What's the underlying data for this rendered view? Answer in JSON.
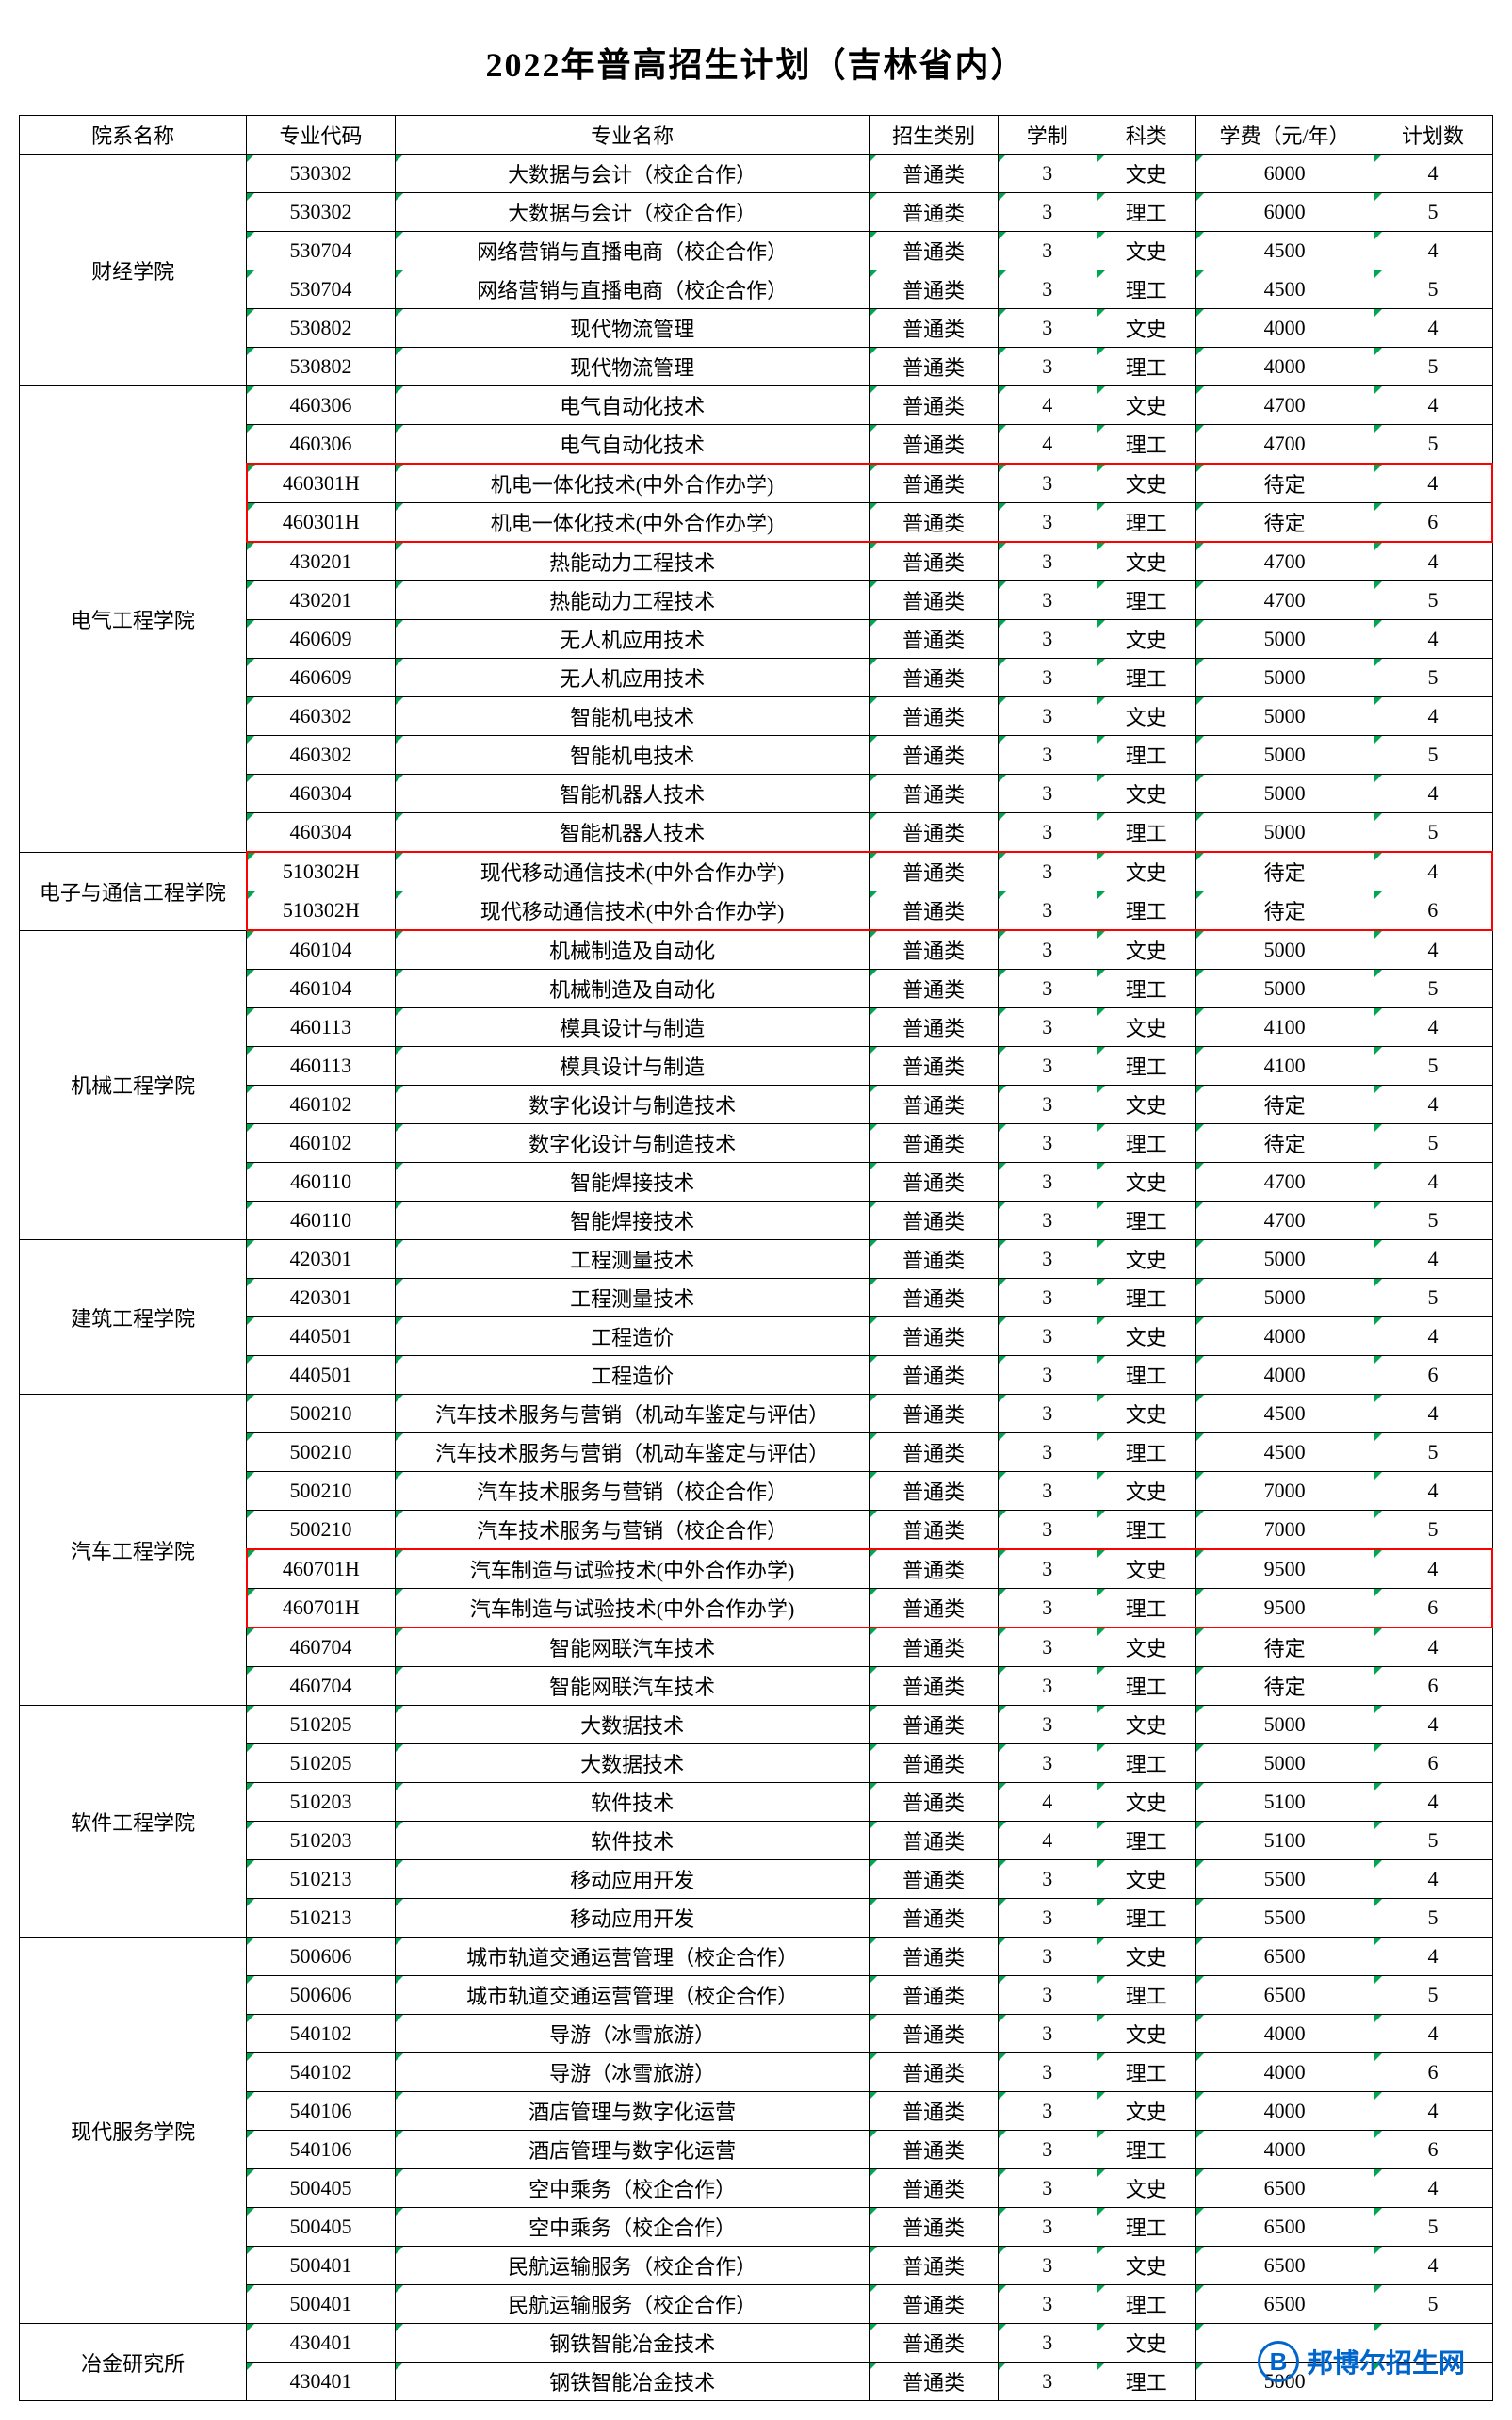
{
  "title": "2022年普高招生计划（吉林省内）",
  "headers": {
    "dept": "院系名称",
    "code": "专业代码",
    "major": "专业名称",
    "category": "招生类别",
    "duration": "学制",
    "subject": "科类",
    "fee": "学费（元/年）",
    "plan": "计划数"
  },
  "watermark": {
    "logo_letter": "B",
    "text": "邦博尔招生网"
  },
  "departments": [
    {
      "name": "财经学院",
      "rows": [
        {
          "code": "530302",
          "major": "大数据与会计（校企合作）",
          "cat": "普通类",
          "dur": "3",
          "sub": "文史",
          "fee": "6000",
          "plan": "4"
        },
        {
          "code": "530302",
          "major": "大数据与会计（校企合作）",
          "cat": "普通类",
          "dur": "3",
          "sub": "理工",
          "fee": "6000",
          "plan": "5"
        },
        {
          "code": "530704",
          "major": "网络营销与直播电商（校企合作）",
          "cat": "普通类",
          "dur": "3",
          "sub": "文史",
          "fee": "4500",
          "plan": "4"
        },
        {
          "code": "530704",
          "major": "网络营销与直播电商（校企合作）",
          "cat": "普通类",
          "dur": "3",
          "sub": "理工",
          "fee": "4500",
          "plan": "5"
        },
        {
          "code": "530802",
          "major": "现代物流管理",
          "cat": "普通类",
          "dur": "3",
          "sub": "文史",
          "fee": "4000",
          "plan": "4"
        },
        {
          "code": "530802",
          "major": "现代物流管理",
          "cat": "普通类",
          "dur": "3",
          "sub": "理工",
          "fee": "4000",
          "plan": "5"
        }
      ]
    },
    {
      "name": "电气工程学院",
      "rows": [
        {
          "code": "460306",
          "major": "电气自动化技术",
          "cat": "普通类",
          "dur": "4",
          "sub": "文史",
          "fee": "4700",
          "plan": "4"
        },
        {
          "code": "460306",
          "major": "电气自动化技术",
          "cat": "普通类",
          "dur": "4",
          "sub": "理工",
          "fee": "4700",
          "plan": "5"
        },
        {
          "code": "460301H",
          "major": "机电一体化技术(中外合作办学)",
          "cat": "普通类",
          "dur": "3",
          "sub": "文史",
          "fee": "待定",
          "plan": "4",
          "hl": "top"
        },
        {
          "code": "460301H",
          "major": "机电一体化技术(中外合作办学)",
          "cat": "普通类",
          "dur": "3",
          "sub": "理工",
          "fee": "待定",
          "plan": "6",
          "hl": "bot"
        },
        {
          "code": "430201",
          "major": "热能动力工程技术",
          "cat": "普通类",
          "dur": "3",
          "sub": "文史",
          "fee": "4700",
          "plan": "4"
        },
        {
          "code": "430201",
          "major": "热能动力工程技术",
          "cat": "普通类",
          "dur": "3",
          "sub": "理工",
          "fee": "4700",
          "plan": "5"
        },
        {
          "code": "460609",
          "major": "无人机应用技术",
          "cat": "普通类",
          "dur": "3",
          "sub": "文史",
          "fee": "5000",
          "plan": "4"
        },
        {
          "code": "460609",
          "major": "无人机应用技术",
          "cat": "普通类",
          "dur": "3",
          "sub": "理工",
          "fee": "5000",
          "plan": "5"
        },
        {
          "code": "460302",
          "major": "智能机电技术",
          "cat": "普通类",
          "dur": "3",
          "sub": "文史",
          "fee": "5000",
          "plan": "4"
        },
        {
          "code": "460302",
          "major": "智能机电技术",
          "cat": "普通类",
          "dur": "3",
          "sub": "理工",
          "fee": "5000",
          "plan": "5"
        },
        {
          "code": "460304",
          "major": "智能机器人技术",
          "cat": "普通类",
          "dur": "3",
          "sub": "文史",
          "fee": "5000",
          "plan": "4"
        },
        {
          "code": "460304",
          "major": "智能机器人技术",
          "cat": "普通类",
          "dur": "3",
          "sub": "理工",
          "fee": "5000",
          "plan": "5"
        }
      ]
    },
    {
      "name": "电子与通信工程学院",
      "rows": [
        {
          "code": "510302H",
          "major": "现代移动通信技术(中外合作办学)",
          "cat": "普通类",
          "dur": "3",
          "sub": "文史",
          "fee": "待定",
          "plan": "4",
          "hl": "top"
        },
        {
          "code": "510302H",
          "major": "现代移动通信技术(中外合作办学)",
          "cat": "普通类",
          "dur": "3",
          "sub": "理工",
          "fee": "待定",
          "plan": "6",
          "hl": "bot"
        }
      ]
    },
    {
      "name": "机械工程学院",
      "rows": [
        {
          "code": "460104",
          "major": "机械制造及自动化",
          "cat": "普通类",
          "dur": "3",
          "sub": "文史",
          "fee": "5000",
          "plan": "4"
        },
        {
          "code": "460104",
          "major": "机械制造及自动化",
          "cat": "普通类",
          "dur": "3",
          "sub": "理工",
          "fee": "5000",
          "plan": "5"
        },
        {
          "code": "460113",
          "major": "模具设计与制造",
          "cat": "普通类",
          "dur": "3",
          "sub": "文史",
          "fee": "4100",
          "plan": "4"
        },
        {
          "code": "460113",
          "major": "模具设计与制造",
          "cat": "普通类",
          "dur": "3",
          "sub": "理工",
          "fee": "4100",
          "plan": "5"
        },
        {
          "code": "460102",
          "major": "数字化设计与制造技术",
          "cat": "普通类",
          "dur": "3",
          "sub": "文史",
          "fee": "待定",
          "plan": "4"
        },
        {
          "code": "460102",
          "major": "数字化设计与制造技术",
          "cat": "普通类",
          "dur": "3",
          "sub": "理工",
          "fee": "待定",
          "plan": "5"
        },
        {
          "code": "460110",
          "major": "智能焊接技术",
          "cat": "普通类",
          "dur": "3",
          "sub": "文史",
          "fee": "4700",
          "plan": "4"
        },
        {
          "code": "460110",
          "major": "智能焊接技术",
          "cat": "普通类",
          "dur": "3",
          "sub": "理工",
          "fee": "4700",
          "plan": "5"
        }
      ]
    },
    {
      "name": "建筑工程学院",
      "rows": [
        {
          "code": "420301",
          "major": "工程测量技术",
          "cat": "普通类",
          "dur": "3",
          "sub": "文史",
          "fee": "5000",
          "plan": "4"
        },
        {
          "code": "420301",
          "major": "工程测量技术",
          "cat": "普通类",
          "dur": "3",
          "sub": "理工",
          "fee": "5000",
          "plan": "5"
        },
        {
          "code": "440501",
          "major": "工程造价",
          "cat": "普通类",
          "dur": "3",
          "sub": "文史",
          "fee": "4000",
          "plan": "4"
        },
        {
          "code": "440501",
          "major": "工程造价",
          "cat": "普通类",
          "dur": "3",
          "sub": "理工",
          "fee": "4000",
          "plan": "6"
        }
      ]
    },
    {
      "name": "汽车工程学院",
      "rows": [
        {
          "code": "500210",
          "major": "汽车技术服务与营销（机动车鉴定与评估）",
          "cat": "普通类",
          "dur": "3",
          "sub": "文史",
          "fee": "4500",
          "plan": "4"
        },
        {
          "code": "500210",
          "major": "汽车技术服务与营销（机动车鉴定与评估）",
          "cat": "普通类",
          "dur": "3",
          "sub": "理工",
          "fee": "4500",
          "plan": "5"
        },
        {
          "code": "500210",
          "major": "汽车技术服务与营销（校企合作）",
          "cat": "普通类",
          "dur": "3",
          "sub": "文史",
          "fee": "7000",
          "plan": "4"
        },
        {
          "code": "500210",
          "major": "汽车技术服务与营销（校企合作）",
          "cat": "普通类",
          "dur": "3",
          "sub": "理工",
          "fee": "7000",
          "plan": "5"
        },
        {
          "code": "460701H",
          "major": "汽车制造与试验技术(中外合作办学)",
          "cat": "普通类",
          "dur": "3",
          "sub": "文史",
          "fee": "9500",
          "plan": "4",
          "hl": "top"
        },
        {
          "code": "460701H",
          "major": "汽车制造与试验技术(中外合作办学)",
          "cat": "普通类",
          "dur": "3",
          "sub": "理工",
          "fee": "9500",
          "plan": "6",
          "hl": "bot"
        },
        {
          "code": "460704",
          "major": "智能网联汽车技术",
          "cat": "普通类",
          "dur": "3",
          "sub": "文史",
          "fee": "待定",
          "plan": "4"
        },
        {
          "code": "460704",
          "major": "智能网联汽车技术",
          "cat": "普通类",
          "dur": "3",
          "sub": "理工",
          "fee": "待定",
          "plan": "6"
        }
      ]
    },
    {
      "name": "软件工程学院",
      "rows": [
        {
          "code": "510205",
          "major": "大数据技术",
          "cat": "普通类",
          "dur": "3",
          "sub": "文史",
          "fee": "5000",
          "plan": "4"
        },
        {
          "code": "510205",
          "major": "大数据技术",
          "cat": "普通类",
          "dur": "3",
          "sub": "理工",
          "fee": "5000",
          "plan": "6"
        },
        {
          "code": "510203",
          "major": "软件技术",
          "cat": "普通类",
          "dur": "4",
          "sub": "文史",
          "fee": "5100",
          "plan": "4"
        },
        {
          "code": "510203",
          "major": "软件技术",
          "cat": "普通类",
          "dur": "4",
          "sub": "理工",
          "fee": "5100",
          "plan": "5"
        },
        {
          "code": "510213",
          "major": "移动应用开发",
          "cat": "普通类",
          "dur": "3",
          "sub": "文史",
          "fee": "5500",
          "plan": "4"
        },
        {
          "code": "510213",
          "major": "移动应用开发",
          "cat": "普通类",
          "dur": "3",
          "sub": "理工",
          "fee": "5500",
          "plan": "5"
        }
      ]
    },
    {
      "name": "现代服务学院",
      "rows": [
        {
          "code": "500606",
          "major": "城市轨道交通运营管理（校企合作）",
          "cat": "普通类",
          "dur": "3",
          "sub": "文史",
          "fee": "6500",
          "plan": "4"
        },
        {
          "code": "500606",
          "major": "城市轨道交通运营管理（校企合作）",
          "cat": "普通类",
          "dur": "3",
          "sub": "理工",
          "fee": "6500",
          "plan": "5"
        },
        {
          "code": "540102",
          "major": "导游（冰雪旅游）",
          "cat": "普通类",
          "dur": "3",
          "sub": "文史",
          "fee": "4000",
          "plan": "4"
        },
        {
          "code": "540102",
          "major": "导游（冰雪旅游）",
          "cat": "普通类",
          "dur": "3",
          "sub": "理工",
          "fee": "4000",
          "plan": "6"
        },
        {
          "code": "540106",
          "major": "酒店管理与数字化运营",
          "cat": "普通类",
          "dur": "3",
          "sub": "文史",
          "fee": "4000",
          "plan": "4"
        },
        {
          "code": "540106",
          "major": "酒店管理与数字化运营",
          "cat": "普通类",
          "dur": "3",
          "sub": "理工",
          "fee": "4000",
          "plan": "6"
        },
        {
          "code": "500405",
          "major": "空中乘务（校企合作）",
          "cat": "普通类",
          "dur": "3",
          "sub": "文史",
          "fee": "6500",
          "plan": "4"
        },
        {
          "code": "500405",
          "major": "空中乘务（校企合作）",
          "cat": "普通类",
          "dur": "3",
          "sub": "理工",
          "fee": "6500",
          "plan": "5"
        },
        {
          "code": "500401",
          "major": "民航运输服务（校企合作）",
          "cat": "普通类",
          "dur": "3",
          "sub": "文史",
          "fee": "6500",
          "plan": "4"
        },
        {
          "code": "500401",
          "major": "民航运输服务（校企合作）",
          "cat": "普通类",
          "dur": "3",
          "sub": "理工",
          "fee": "6500",
          "plan": "5"
        }
      ]
    },
    {
      "name": "冶金研究所",
      "rows": [
        {
          "code": "430401",
          "major": "钢铁智能冶金技术",
          "cat": "普通类",
          "dur": "3",
          "sub": "文史",
          "fee": "",
          "plan": ""
        },
        {
          "code": "430401",
          "major": "钢铁智能冶金技术",
          "cat": "普通类",
          "dur": "3",
          "sub": "理工",
          "fee": "5000",
          "plan": ""
        }
      ]
    }
  ]
}
